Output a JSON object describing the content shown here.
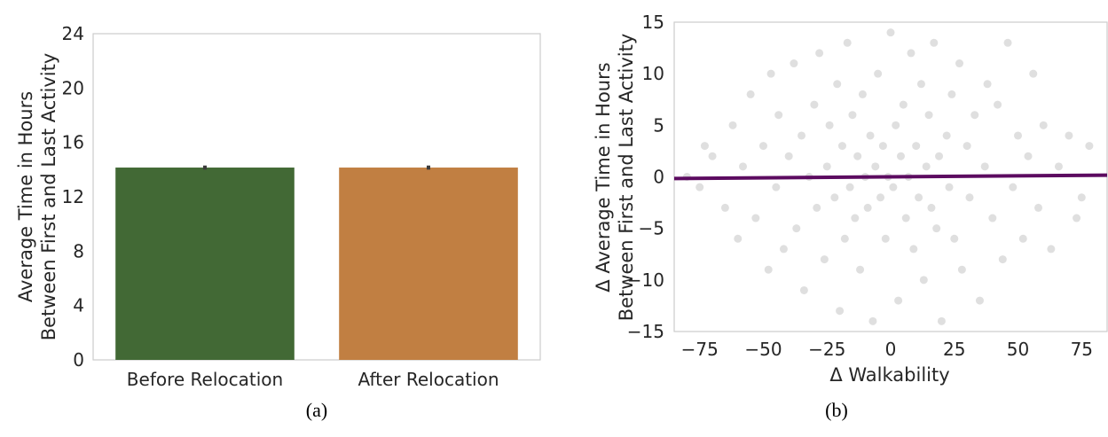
{
  "chart_data": [
    {
      "type": "bar",
      "categories": [
        "Before Relocation",
        "After Relocation"
      ],
      "values": [
        14.15,
        14.15
      ],
      "errors": [
        0.15,
        0.15
      ],
      "colors": [
        "#426935",
        "#c17f42"
      ],
      "ylabel_lines": [
        "Average Time in Hours",
        "Between First and Last Activity"
      ],
      "ylim": [
        0,
        24
      ],
      "yticks": [
        "0",
        "4",
        "8",
        "12",
        "16",
        "20",
        "24"
      ],
      "caption": "(a)"
    },
    {
      "type": "scatter",
      "xlabel": "Δ Walkability",
      "ylabel_lines": [
        "Δ Average Time in Hours",
        "Between First and Last Activity"
      ],
      "xlim": [
        -85,
        85
      ],
      "ylim": [
        -15,
        15
      ],
      "xticks": [
        "−75",
        "−50",
        "−25",
        "0",
        "25",
        "50",
        "75"
      ],
      "yticks": [
        "−15",
        "−10",
        "−5",
        "0",
        "5",
        "10",
        "15"
      ],
      "point_color": "#808080",
      "regression": {
        "slope": 0.0019,
        "intercept": 0,
        "color": "#5c0b60"
      },
      "points": [
        [
          -70,
          2
        ],
        [
          -65,
          -3
        ],
        [
          -62,
          5
        ],
        [
          -60,
          -6
        ],
        [
          -58,
          1
        ],
        [
          -55,
          8
        ],
        [
          -53,
          -4
        ],
        [
          -50,
          3
        ],
        [
          -48,
          -9
        ],
        [
          -47,
          10
        ],
        [
          -45,
          -1
        ],
        [
          -44,
          6
        ],
        [
          -42,
          -7
        ],
        [
          -40,
          2
        ],
        [
          -38,
          11
        ],
        [
          -37,
          -5
        ],
        [
          -35,
          4
        ],
        [
          -34,
          -11
        ],
        [
          -32,
          0
        ],
        [
          -30,
          7
        ],
        [
          -29,
          -3
        ],
        [
          -28,
          12
        ],
        [
          -26,
          -8
        ],
        [
          -25,
          1
        ],
        [
          -24,
          5
        ],
        [
          -22,
          -2
        ],
        [
          -21,
          9
        ],
        [
          -20,
          -13
        ],
        [
          -19,
          3
        ],
        [
          -18,
          -6
        ],
        [
          -17,
          13
        ],
        [
          -16,
          -1
        ],
        [
          -15,
          6
        ],
        [
          -14,
          -4
        ],
        [
          -13,
          2
        ],
        [
          -12,
          -9
        ],
        [
          -11,
          8
        ],
        [
          -10,
          0
        ],
        [
          -9,
          -3
        ],
        [
          -8,
          4
        ],
        [
          -7,
          -14
        ],
        [
          -6,
          1
        ],
        [
          -5,
          10
        ],
        [
          -4,
          -2
        ],
        [
          -3,
          3
        ],
        [
          -2,
          -6
        ],
        [
          -1,
          0
        ],
        [
          0,
          14
        ],
        [
          1,
          -1
        ],
        [
          2,
          5
        ],
        [
          3,
          -12
        ],
        [
          4,
          2
        ],
        [
          5,
          7
        ],
        [
          6,
          -4
        ],
        [
          7,
          0
        ],
        [
          8,
          12
        ],
        [
          9,
          -7
        ],
        [
          10,
          3
        ],
        [
          11,
          -2
        ],
        [
          12,
          9
        ],
        [
          13,
          -10
        ],
        [
          14,
          1
        ],
        [
          15,
          6
        ],
        [
          16,
          -3
        ],
        [
          17,
          13
        ],
        [
          18,
          -5
        ],
        [
          19,
          2
        ],
        [
          20,
          -14
        ],
        [
          22,
          4
        ],
        [
          23,
          -1
        ],
        [
          24,
          8
        ],
        [
          25,
          -6
        ],
        [
          27,
          11
        ],
        [
          28,
          -9
        ],
        [
          30,
          3
        ],
        [
          31,
          -2
        ],
        [
          33,
          6
        ],
        [
          35,
          -12
        ],
        [
          37,
          1
        ],
        [
          38,
          9
        ],
        [
          40,
          -4
        ],
        [
          42,
          7
        ],
        [
          44,
          -8
        ],
        [
          46,
          13
        ],
        [
          48,
          -1
        ],
        [
          50,
          4
        ],
        [
          52,
          -6
        ],
        [
          54,
          2
        ],
        [
          56,
          10
        ],
        [
          58,
          -3
        ],
        [
          60,
          5
        ],
        [
          63,
          -7
        ],
        [
          66,
          1
        ],
        [
          70,
          4
        ],
        [
          75,
          -2
        ],
        [
          -75,
          -1
        ],
        [
          78,
          3
        ],
        [
          -80,
          0
        ],
        [
          -73,
          3
        ],
        [
          73,
          -4
        ]
      ],
      "caption": "(b)"
    }
  ]
}
